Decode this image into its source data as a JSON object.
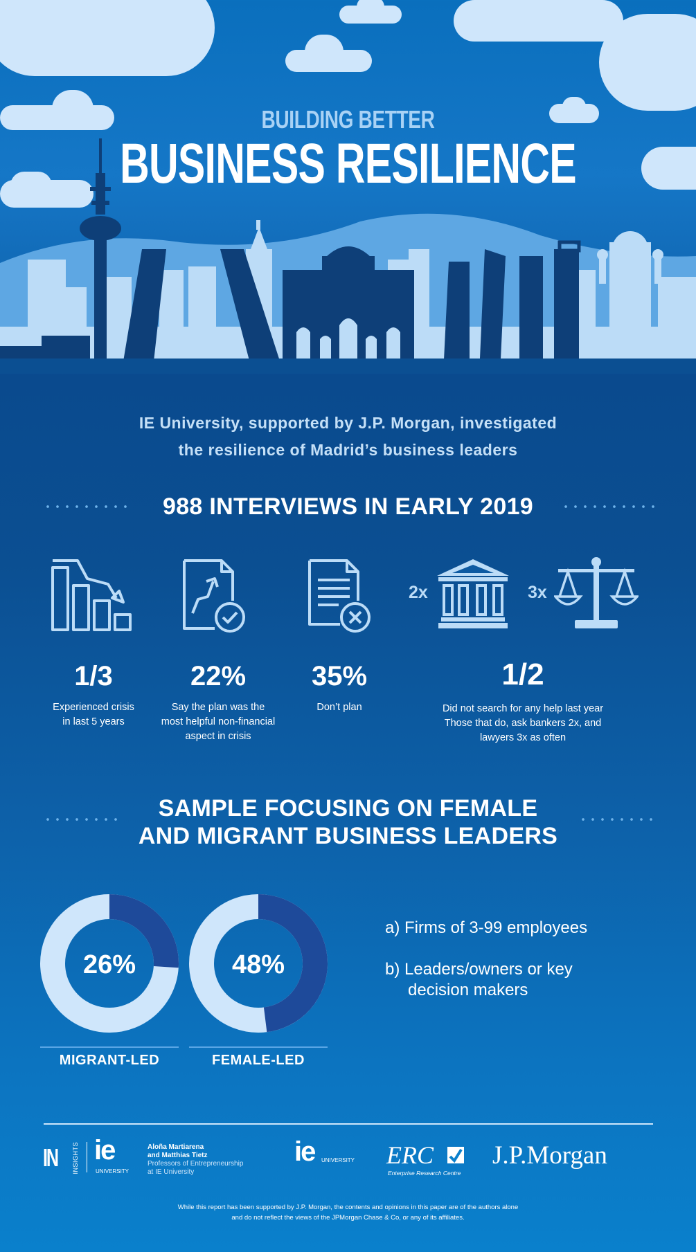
{
  "header": {
    "subtitle": "BUILDING BETTER",
    "title": "BUSINESS RESILIENCE"
  },
  "intro": {
    "line1": "IE University, supported by J.P. Morgan, investigated",
    "line2": "the resilience of Madrid’s business leaders"
  },
  "interviews": {
    "heading": "988 INTERVIEWS IN EARLY 2019",
    "stats": [
      {
        "icon": "declining-chart-icon",
        "value": "1/3",
        "desc1": "Experienced crisis",
        "desc2": "in last 5 years",
        "desc3": ""
      },
      {
        "icon": "growth-plan-document-icon",
        "value": "22%",
        "desc1": "Say the plan was the",
        "desc2": "most helpful non-financial",
        "desc3": "aspect in crisis"
      },
      {
        "icon": "document-cancel-icon",
        "value": "35%",
        "desc1": "Don’t plan",
        "desc2": "",
        "desc3": ""
      },
      {
        "icon": "bank-and-scales-icon",
        "value": "1/2",
        "desc1": "Did not search for any help last year",
        "desc2": "Those that do, ask bankers 2x, and",
        "desc3": "lawyers 3x as often"
      }
    ],
    "multiplier_bank": "2x",
    "multiplier_scales": "3x"
  },
  "sample": {
    "heading1": "SAMPLE FOCUSING ON FEMALE",
    "heading2": "AND MIGRANT BUSINESS LEADERS",
    "donuts": [
      {
        "label": "MIGRANT-LED",
        "percent_text": "26%",
        "percent": 26
      },
      {
        "label": "FEMALE-LED",
        "percent_text": "48%",
        "percent": 48
      }
    ],
    "criteria_a": "a) Firms of 3-99 employees",
    "criteria_b1": "b) Leaders/owners or key",
    "criteria_b2": "decision makers"
  },
  "footer": {
    "insights_logo": "INSIGHTS",
    "ie_logo": "ie",
    "ie_logo_sub": "UNIVERSITY",
    "authors_line1": "Aloña Martiarena",
    "authors_line2": "and Matthias Tietz",
    "authors_line3": "Professors of Entrepreneurship",
    "authors_line4": "at IE University",
    "ie_logo2": "ie",
    "ie_logo2_sub": "UNIVERSITY",
    "erc_logo": "ERC",
    "erc_sub": "Enterprise Research Centre",
    "jpm_logo": "J.P.Morgan",
    "disclaimer1": "While this report has been supported by J.P. Morgan, the contents and opinions in this paper are of the authors alone",
    "disclaimer2": "and do not reflect the views of the JPMorgan Chase & Co, or any of its affiliates."
  },
  "colors": {
    "accent_light": "#cfe6fb",
    "accent_dark": "#1e4a9a",
    "skyline_dark": "#0e3f78",
    "skyline_light": "#bcdcf7"
  }
}
